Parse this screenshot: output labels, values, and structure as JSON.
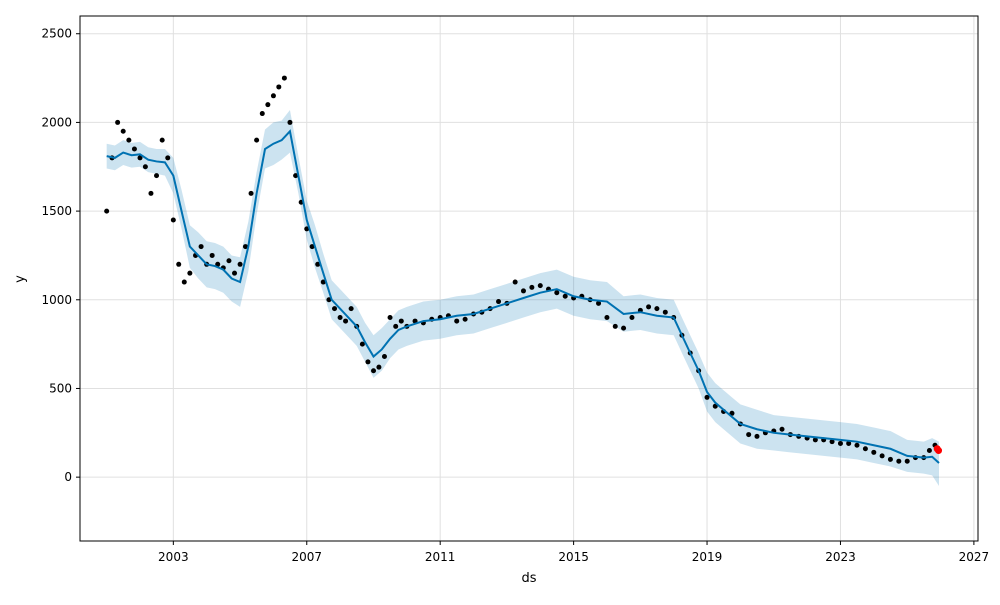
{
  "chart_data": {
    "type": "line",
    "title": "",
    "xlabel": "ds",
    "ylabel": "y",
    "xlim": [
      "2000-03-15",
      "2027-02-15"
    ],
    "ylim": [
      -360,
      2600
    ],
    "grid": true,
    "legend": "none",
    "x_ticks": [
      {
        "value": "2003-01-01",
        "label": "2003"
      },
      {
        "value": "2007-01-01",
        "label": "2007"
      },
      {
        "value": "2011-01-01",
        "label": "2011"
      },
      {
        "value": "2015-01-01",
        "label": "2015"
      },
      {
        "value": "2019-01-01",
        "label": "2019"
      },
      {
        "value": "2023-01-01",
        "label": "2023"
      },
      {
        "value": "2027-01-01",
        "label": "2027"
      }
    ],
    "y_ticks": [
      0,
      500,
      1000,
      1500,
      2000,
      2500
    ],
    "colors": {
      "actual_points": "#000000",
      "forecast_line": "#0072B2",
      "uncertainty_band": "#0072B2",
      "highlight_points": "#FF0000"
    },
    "series": [
      {
        "kind": "forecast",
        "x": [
          "2001-01-01",
          "2001-04-01",
          "2001-07-01",
          "2001-10-01",
          "2002-01-01",
          "2002-04-01",
          "2002-07-01",
          "2002-10-01",
          "2003-01-01",
          "2003-04-01",
          "2003-07-01",
          "2003-10-01",
          "2004-01-01",
          "2004-04-01",
          "2004-07-01",
          "2004-10-01",
          "2005-01-01",
          "2005-04-01",
          "2005-07-01",
          "2005-10-01",
          "2006-01-01",
          "2006-04-01",
          "2006-07-01",
          "2006-10-01",
          "2007-01-01",
          "2007-04-01",
          "2007-07-01",
          "2007-10-01",
          "2008-01-01",
          "2008-04-01",
          "2008-07-01",
          "2008-10-01",
          "2009-01-01",
          "2009-04-01",
          "2009-07-01",
          "2009-10-01",
          "2010-01-01",
          "2010-07-01",
          "2011-01-01",
          "2011-07-01",
          "2012-01-01",
          "2012-07-01",
          "2013-01-01",
          "2013-07-01",
          "2014-01-01",
          "2014-07-01",
          "2015-01-01",
          "2015-07-01",
          "2016-01-01",
          "2016-07-01",
          "2017-01-01",
          "2017-07-01",
          "2018-01-01",
          "2018-04-01",
          "2018-07-01",
          "2018-10-01",
          "2019-01-01",
          "2019-04-01",
          "2019-07-01",
          "2019-10-01",
          "2020-01-01",
          "2020-07-01",
          "2021-01-01",
          "2021-07-01",
          "2022-01-01",
          "2022-07-01",
          "2023-01-01",
          "2023-07-01",
          "2024-01-01",
          "2024-07-01",
          "2025-01-01",
          "2025-07-01",
          "2025-10-01",
          "2025-12-15"
        ],
        "values": [
          1810,
          1800,
          1830,
          1815,
          1820,
          1790,
          1780,
          1775,
          1700,
          1500,
          1300,
          1250,
          1200,
          1190,
          1170,
          1120,
          1100,
          1300,
          1600,
          1850,
          1880,
          1900,
          1950,
          1700,
          1450,
          1300,
          1150,
          1000,
          950,
          900,
          850,
          760,
          680,
          720,
          780,
          830,
          850,
          880,
          890,
          910,
          920,
          950,
          980,
          1010,
          1040,
          1060,
          1020,
          1000,
          990,
          920,
          930,
          910,
          900,
          800,
          700,
          600,
          480,
          420,
          380,
          340,
          300,
          270,
          250,
          240,
          230,
          220,
          210,
          200,
          180,
          160,
          120,
          110,
          115,
          80
        ],
        "lower": [
          1740,
          1730,
          1760,
          1745,
          1750,
          1720,
          1710,
          1700,
          1600,
          1400,
          1180,
          1120,
          1070,
          1060,
          1040,
          990,
          960,
          1160,
          1480,
          1740,
          1760,
          1790,
          1830,
          1600,
          1340,
          1180,
          1040,
          890,
          840,
          790,
          740,
          650,
          560,
          600,
          670,
          720,
          740,
          770,
          780,
          800,
          810,
          840,
          870,
          900,
          930,
          950,
          910,
          890,
          880,
          820,
          830,
          810,
          800,
          700,
          600,
          500,
          370,
          310,
          270,
          230,
          190,
          160,
          150,
          140,
          130,
          120,
          110,
          100,
          80,
          60,
          30,
          20,
          10,
          -50
        ],
        "upper": [
          1880,
          1870,
          1900,
          1885,
          1890,
          1860,
          1850,
          1850,
          1800,
          1620,
          1420,
          1380,
          1330,
          1320,
          1300,
          1250,
          1240,
          1440,
          1720,
          1960,
          2000,
          2010,
          2070,
          1810,
          1560,
          1420,
          1260,
          1110,
          1060,
          1010,
          960,
          870,
          800,
          840,
          890,
          940,
          960,
          990,
          1000,
          1020,
          1030,
          1060,
          1090,
          1120,
          1150,
          1170,
          1130,
          1110,
          1100,
          1020,
          1030,
          1010,
          1000,
          900,
          800,
          700,
          590,
          530,
          490,
          450,
          410,
          380,
          350,
          340,
          330,
          320,
          310,
          300,
          280,
          260,
          210,
          200,
          220,
          200
        ]
      },
      {
        "kind": "actual",
        "x": [
          "2001-01-01",
          "2001-03-01",
          "2001-05-01",
          "2001-07-01",
          "2001-09-01",
          "2001-11-01",
          "2002-01-01",
          "2002-03-01",
          "2002-05-01",
          "2002-07-01",
          "2002-09-01",
          "2002-11-01",
          "2003-01-01",
          "2003-03-01",
          "2003-05-01",
          "2003-07-01",
          "2003-09-01",
          "2003-11-01",
          "2004-01-01",
          "2004-03-01",
          "2004-05-01",
          "2004-07-01",
          "2004-09-01",
          "2004-11-01",
          "2005-01-01",
          "2005-03-01",
          "2005-05-01",
          "2005-07-01",
          "2005-09-01",
          "2005-11-01",
          "2006-01-01",
          "2006-03-01",
          "2006-05-01",
          "2006-07-01",
          "2006-09-01",
          "2006-11-01",
          "2007-01-01",
          "2007-03-01",
          "2007-05-01",
          "2007-07-01",
          "2007-09-01",
          "2007-11-01",
          "2008-01-01",
          "2008-03-01",
          "2008-05-01",
          "2008-07-01",
          "2008-09-01",
          "2008-11-01",
          "2009-01-01",
          "2009-03-01",
          "2009-05-01",
          "2009-07-01",
          "2009-09-01",
          "2009-11-01",
          "2010-01-01",
          "2010-04-01",
          "2010-07-01",
          "2010-10-01",
          "2011-01-01",
          "2011-04-01",
          "2011-07-01",
          "2011-10-01",
          "2012-01-01",
          "2012-04-01",
          "2012-07-01",
          "2012-10-01",
          "2013-01-01",
          "2013-04-01",
          "2013-07-01",
          "2013-10-01",
          "2014-01-01",
          "2014-04-01",
          "2014-07-01",
          "2014-10-01",
          "2015-01-01",
          "2015-04-01",
          "2015-07-01",
          "2015-10-01",
          "2016-01-01",
          "2016-04-01",
          "2016-07-01",
          "2016-10-01",
          "2017-01-01",
          "2017-04-01",
          "2017-07-01",
          "2017-10-01",
          "2018-01-01",
          "2018-04-01",
          "2018-07-01",
          "2018-10-01",
          "2019-01-01",
          "2019-04-01",
          "2019-07-01",
          "2019-10-01",
          "2020-01-01",
          "2020-04-01",
          "2020-07-01",
          "2020-10-01",
          "2021-01-01",
          "2021-04-01",
          "2021-07-01",
          "2021-10-01",
          "2022-01-01",
          "2022-04-01",
          "2022-07-01",
          "2022-10-01",
          "2023-01-01",
          "2023-04-01",
          "2023-07-01",
          "2023-10-01",
          "2024-01-01",
          "2024-04-01",
          "2024-07-01",
          "2024-10-01",
          "2025-01-01",
          "2025-04-01",
          "2025-07-01",
          "2025-09-01",
          "2025-11-01"
        ],
        "values": [
          1500,
          1800,
          2000,
          1950,
          1900,
          1850,
          1800,
          1750,
          1600,
          1700,
          1900,
          1800,
          1450,
          1200,
          1100,
          1150,
          1250,
          1300,
          1200,
          1250,
          1200,
          1180,
          1220,
          1150,
          1200,
          1300,
          1600,
          1900,
          2050,
          2100,
          2150,
          2200,
          2250,
          2000,
          1700,
          1550,
          1400,
          1300,
          1200,
          1100,
          1000,
          950,
          900,
          880,
          950,
          850,
          750,
          650,
          600,
          620,
          680,
          900,
          850,
          880,
          850,
          880,
          870,
          890,
          900,
          910,
          880,
          890,
          920,
          930,
          950,
          990,
          980,
          1100,
          1050,
          1070,
          1080,
          1060,
          1040,
          1020,
          1010,
          1020,
          1000,
          980,
          900,
          850,
          840,
          900,
          940,
          960,
          950,
          930,
          900,
          800,
          700,
          600,
          450,
          400,
          370,
          360,
          300,
          240,
          230,
          250,
          260,
          270,
          240,
          230,
          220,
          210,
          210,
          200,
          190,
          190,
          180,
          160,
          140,
          120,
          100,
          90,
          90,
          110,
          110,
          150,
          180
        ]
      },
      {
        "kind": "highlight",
        "x": [
          "2025-11-25",
          "2025-12-10"
        ],
        "values": [
          160,
          150
        ]
      }
    ]
  }
}
